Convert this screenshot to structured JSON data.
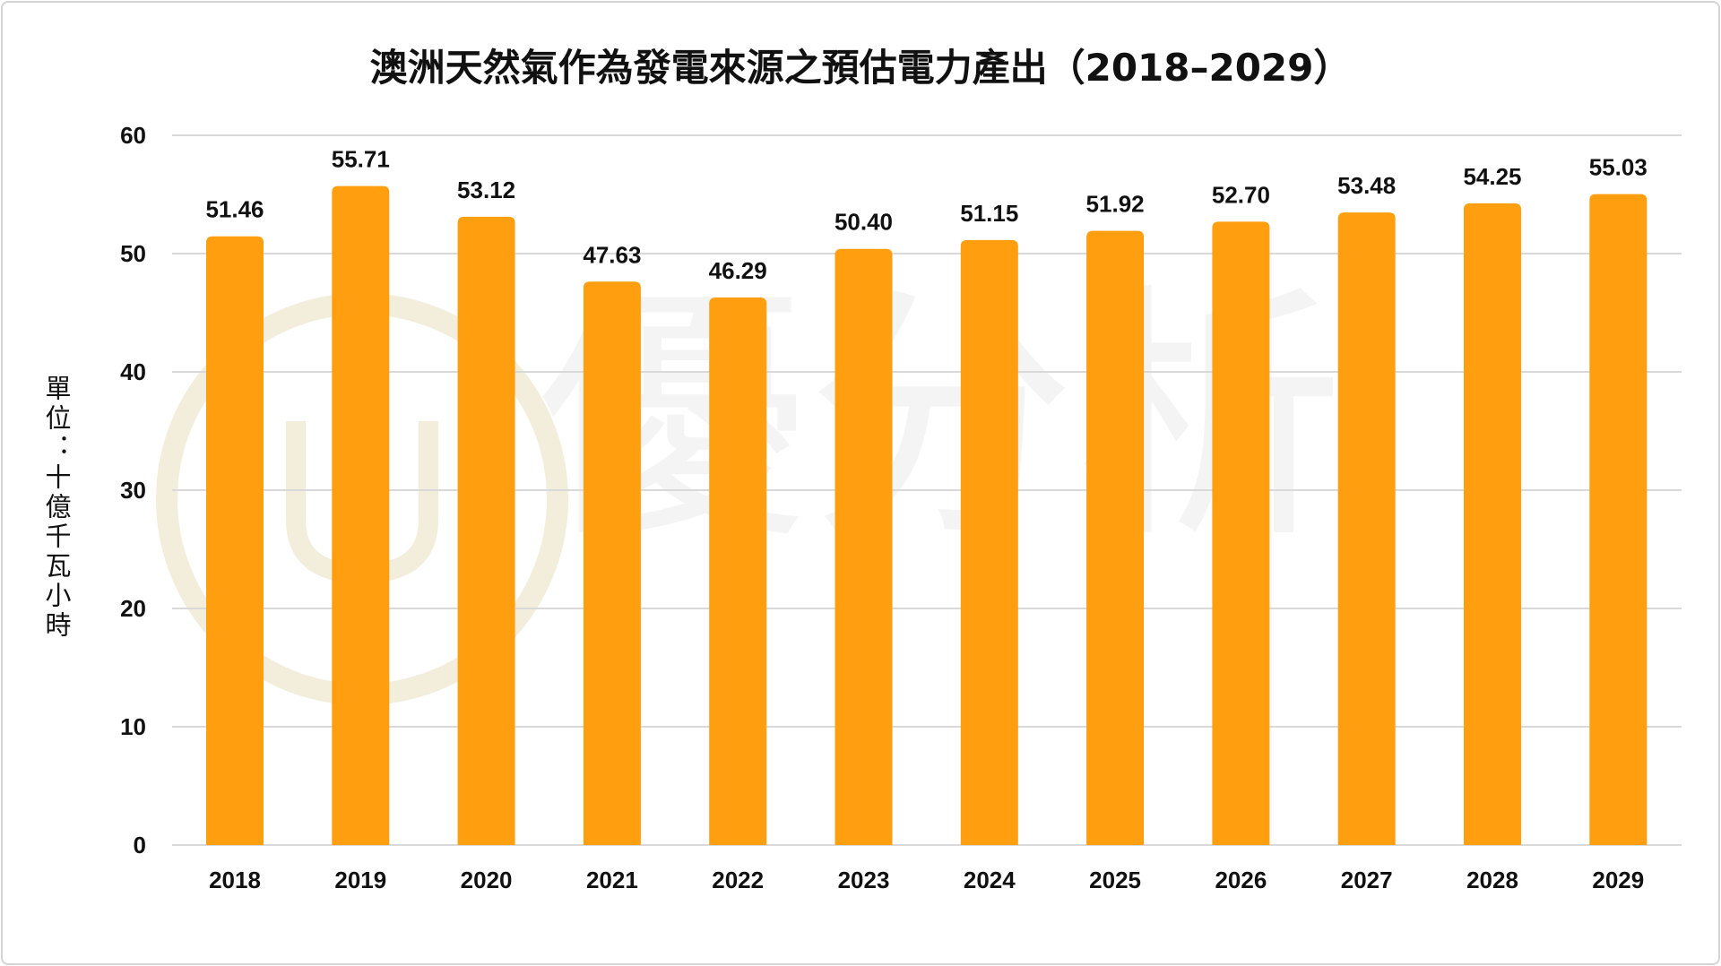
{
  "chart_data": {
    "type": "bar",
    "title": "澳洲天然氣作為發電來源之預估電力產出（2018–2029）",
    "xlabel": "",
    "ylabel": "單位：十億千瓦小時",
    "categories": [
      "2018",
      "2019",
      "2020",
      "2021",
      "2022",
      "2023",
      "2024",
      "2025",
      "2026",
      "2027",
      "2028",
      "2029"
    ],
    "values": [
      51.46,
      55.71,
      53.12,
      47.63,
      46.29,
      50.4,
      51.15,
      51.92,
      52.7,
      53.48,
      54.25,
      55.03
    ],
    "ylim": [
      0,
      60
    ],
    "yticks": [
      0,
      10,
      20,
      30,
      40,
      50,
      60
    ],
    "grid": true,
    "legend": "none",
    "data_labels": true,
    "bar_color": "#FF9F10",
    "grid_color": "#D9D9D9"
  },
  "watermark": {
    "text": "優分析",
    "color": "#F3EDDC"
  }
}
